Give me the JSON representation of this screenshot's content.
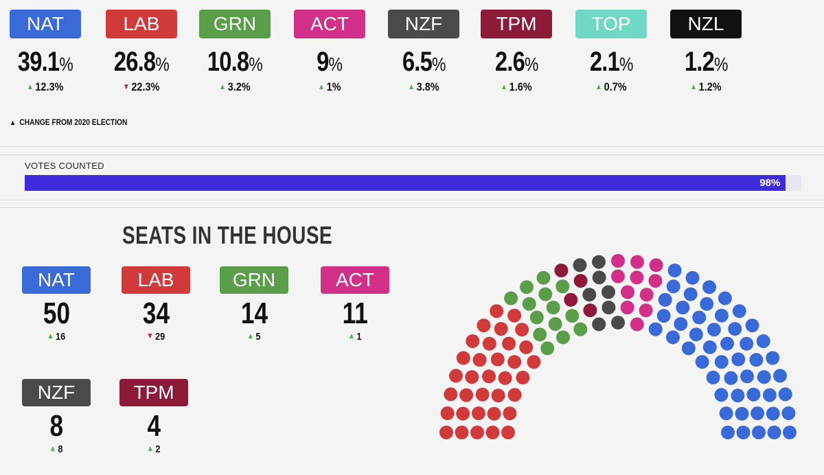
{
  "colors": {
    "NAT": "#3a6ad8",
    "LAB": "#d03a3a",
    "GRN": "#5a9e4a",
    "ACT": "#d12f88",
    "NZF": "#4a4a4a",
    "TPM": "#8e1a3a",
    "TOP": "#6fd9c6",
    "NZL": "#111111",
    "progress": "#3e2bdc",
    "up": "#4cb84c",
    "down": "#c62828"
  },
  "votes": [
    {
      "party": "NAT",
      "value": "39.1",
      "unit": "%",
      "change": "12.3%",
      "direction": "up"
    },
    {
      "party": "LAB",
      "value": "26.8",
      "unit": "%",
      "change": "22.3%",
      "direction": "down"
    },
    {
      "party": "GRN",
      "value": "10.8",
      "unit": "%",
      "change": "3.2%",
      "direction": "up"
    },
    {
      "party": "ACT",
      "value": "9",
      "unit": "%",
      "change": "1%",
      "direction": "up"
    },
    {
      "party": "NZF",
      "value": "6.5",
      "unit": "%",
      "change": "3.8%",
      "direction": "up"
    },
    {
      "party": "TPM",
      "value": "2.6",
      "unit": "%",
      "change": "1.6%",
      "direction": "up"
    },
    {
      "party": "TOP",
      "value": "2.1",
      "unit": "%",
      "change": "0.7%",
      "direction": "up"
    },
    {
      "party": "NZL",
      "value": "1.2",
      "unit": "%",
      "change": "1.2%",
      "direction": "up"
    }
  ],
  "legend_note": "CHANGE FROM 2020 ELECTION",
  "votes_counted": {
    "label": "VOTES COUNTED",
    "percent_text": "98%",
    "fraction": 0.98
  },
  "seats_title": "SEATS IN THE HOUSE",
  "seats": [
    {
      "party": "NAT",
      "seats": "50",
      "change": "16",
      "direction": "up"
    },
    {
      "party": "LAB",
      "seats": "34",
      "change": "29",
      "direction": "down"
    },
    {
      "party": "GRN",
      "seats": "14",
      "change": "5",
      "direction": "up"
    },
    {
      "party": "ACT",
      "seats": "11",
      "change": "1",
      "direction": "up"
    },
    {
      "party": "NZF",
      "seats": "8",
      "change": "8",
      "direction": "up"
    },
    {
      "party": "TPM",
      "seats": "4",
      "change": "2",
      "direction": "up"
    }
  ],
  "parliament_order": [
    "LAB",
    "GRN",
    "TPM",
    "NZF",
    "ACT",
    "NAT"
  ],
  "parliament_counts": {
    "LAB": 34,
    "GRN": 14,
    "TPM": 4,
    "NZF": 8,
    "ACT": 11,
    "NAT": 50
  }
}
